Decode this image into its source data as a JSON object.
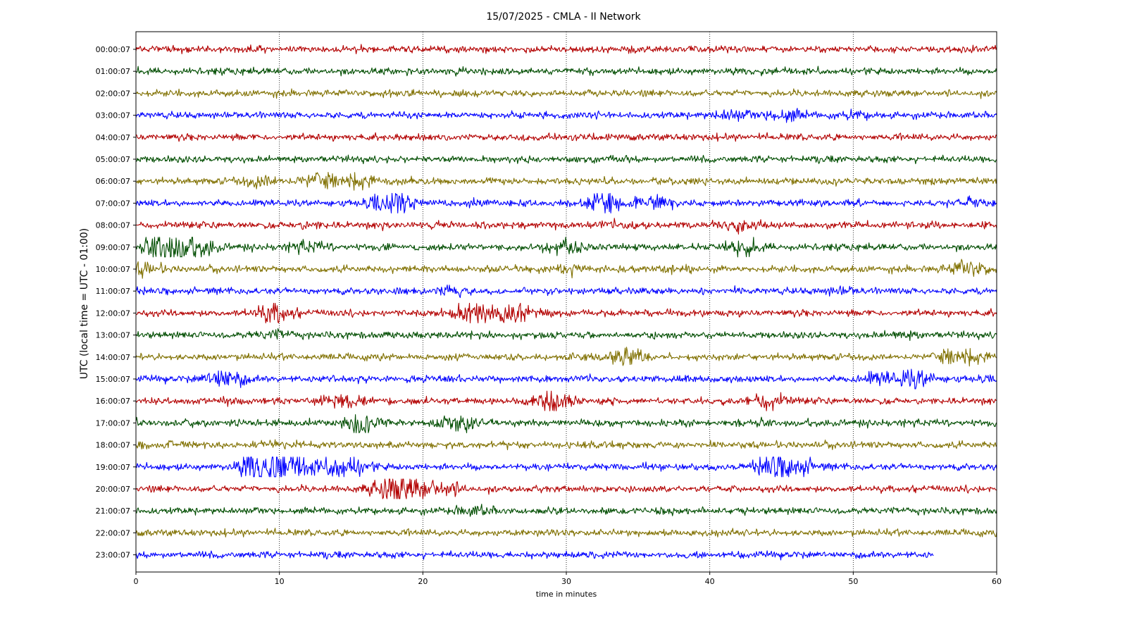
{
  "chart_data": {
    "type": "line",
    "title": "15/07/2025 - CMLA - II Network",
    "xlabel": "time in minutes",
    "ylabel": "UTC (local time = UTC - 01:00)",
    "xlim": [
      0,
      60
    ],
    "x_ticks": [
      0,
      10,
      20,
      30,
      40,
      50,
      60
    ],
    "grid": "vertical dotted at x ticks",
    "colors": [
      "#b30000",
      "#004d00",
      "#807000",
      "#0000ff"
    ],
    "series": [
      {
        "label": "00:00:07",
        "end_minute": 60,
        "bursts": []
      },
      {
        "label": "01:00:07",
        "end_minute": 60,
        "bursts": []
      },
      {
        "label": "02:00:07",
        "end_minute": 60,
        "bursts": []
      },
      {
        "label": "03:00:07",
        "end_minute": 60,
        "bursts": [
          [
            41.5,
            1.8
          ],
          [
            45.2,
            2.2
          ],
          [
            50,
            1.5
          ]
        ]
      },
      {
        "label": "04:00:07",
        "end_minute": 60,
        "bursts": []
      },
      {
        "label": "05:00:07",
        "end_minute": 60,
        "bursts": []
      },
      {
        "label": "06:00:07",
        "end_minute": 60,
        "bursts": [
          [
            8.7,
            2.0
          ],
          [
            12.5,
            2.2
          ],
          [
            15,
            2.8
          ]
        ]
      },
      {
        "label": "07:00:07",
        "end_minute": 60,
        "bursts": [
          [
            18,
            3.5
          ],
          [
            32.6,
            2.5
          ],
          [
            36,
            2.2
          ],
          [
            58.5,
            1.6
          ]
        ]
      },
      {
        "label": "08:00:07",
        "end_minute": 60,
        "bursts": [
          [
            12,
            1.4
          ],
          [
            34.2,
            1.6
          ],
          [
            42.2,
            2.0
          ]
        ]
      },
      {
        "label": "09:00:07",
        "end_minute": 60,
        "bursts": [
          [
            2.2,
            4.0
          ],
          [
            4.2,
            3.0
          ],
          [
            12,
            1.8
          ],
          [
            30,
            2.2
          ],
          [
            42.2,
            2.4
          ]
        ]
      },
      {
        "label": "10:00:07",
        "end_minute": 60,
        "bursts": [
          [
            0.5,
            2.0
          ],
          [
            30.5,
            1.6
          ],
          [
            37.5,
            1.6
          ],
          [
            58,
            2.6
          ]
        ]
      },
      {
        "label": "11:00:07",
        "end_minute": 60,
        "bursts": [
          [
            22,
            1.8
          ],
          [
            49,
            1.5
          ]
        ]
      },
      {
        "label": "12:00:07",
        "end_minute": 60,
        "bursts": [
          [
            9.6,
            3.0
          ],
          [
            23.5,
            3.6
          ],
          [
            26.7,
            3.2
          ]
        ]
      },
      {
        "label": "13:00:07",
        "end_minute": 60,
        "bursts": [
          [
            9.6,
            1.6
          ],
          [
            53.5,
            1.4
          ]
        ]
      },
      {
        "label": "14:00:07",
        "end_minute": 60,
        "bursts": [
          [
            34,
            2.8
          ],
          [
            57.5,
            3.2
          ]
        ]
      },
      {
        "label": "15:00:07",
        "end_minute": 60,
        "bursts": [
          [
            6.2,
            3.0
          ],
          [
            51.8,
            2.0
          ],
          [
            54.3,
            2.8
          ]
        ]
      },
      {
        "label": "16:00:07",
        "end_minute": 60,
        "bursts": [
          [
            14,
            2.0
          ],
          [
            29,
            3.0
          ],
          [
            44,
            2.6
          ]
        ]
      },
      {
        "label": "17:00:07",
        "end_minute": 60,
        "bursts": [
          [
            16,
            3.2
          ],
          [
            22.5,
            2.6
          ]
        ]
      },
      {
        "label": "18:00:07",
        "end_minute": 60,
        "bursts": [
          [
            2,
            1.4
          ],
          [
            9.5,
            1.4
          ]
        ]
      },
      {
        "label": "19:00:07",
        "end_minute": 60,
        "bursts": [
          [
            8.5,
            3.8
          ],
          [
            10,
            4.0
          ],
          [
            11.5,
            2.2
          ],
          [
            14,
            2.6
          ],
          [
            15,
            2.2
          ],
          [
            44.5,
            3.0
          ],
          [
            46,
            2.6
          ]
        ]
      },
      {
        "label": "20:00:07",
        "end_minute": 60,
        "bursts": [
          [
            17.8,
            3.8
          ],
          [
            19.5,
            2.4
          ],
          [
            21.5,
            2.2
          ]
        ]
      },
      {
        "label": "21:00:07",
        "end_minute": 60,
        "bursts": [
          [
            23.5,
            1.8
          ],
          [
            36,
            1.5
          ]
        ]
      },
      {
        "label": "22:00:07",
        "end_minute": 60,
        "bursts": []
      },
      {
        "label": "23:00:07",
        "end_minute": 55.6,
        "bursts": []
      }
    ]
  }
}
